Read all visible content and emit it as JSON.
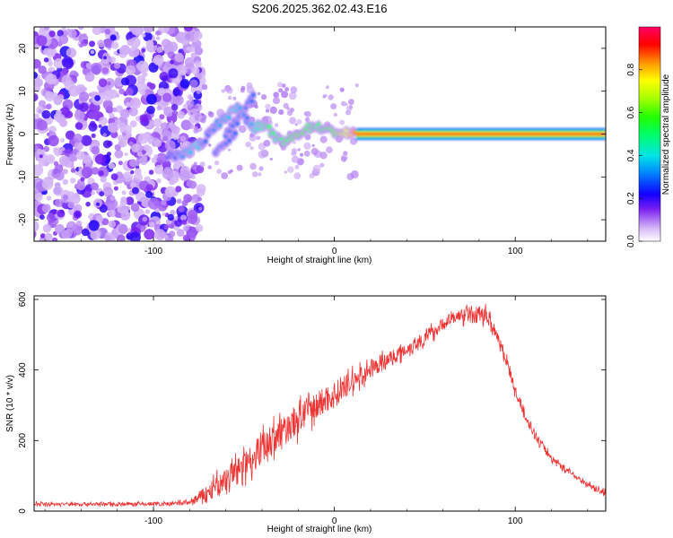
{
  "title": "S206.2025.362.02.43.E16",
  "chart_data": [
    {
      "type": "heatmap",
      "xlabel": "Height of straight line (km)",
      "ylabel": "Frequency (Hz)",
      "xlim": [
        -166,
        150
      ],
      "ylim": [
        -25,
        25
      ],
      "xticks": [
        -100,
        0,
        100
      ],
      "yticks": [
        -20,
        -10,
        0,
        10,
        20
      ],
      "colorbar": {
        "label": "Normalized spectral amplitude",
        "range": [
          0,
          1
        ],
        "ticks": [
          0.0,
          0.2,
          0.4,
          0.6,
          0.8
        ],
        "tick_labels": [
          "0.0",
          "0.2",
          "0.4",
          "0.6",
          "0.8"
        ]
      },
      "noise_region_x": [
        -166,
        -80
      ],
      "signal_track": {
        "x": [
          -92,
          -82,
          -76,
          -72,
          -68,
          -64,
          -60,
          -56,
          -52,
          -48,
          -44,
          -40,
          -36,
          -32,
          -28,
          -24,
          -20,
          -16,
          -12,
          -8,
          -4,
          0,
          4,
          8,
          12,
          150
        ],
        "y": [
          -5,
          -4.5,
          -3,
          -1.5,
          1,
          2.5,
          4,
          5.5,
          6,
          3,
          1.5,
          2,
          1,
          -1,
          -2,
          -1,
          0,
          1,
          2,
          1.5,
          1,
          0.5,
          0.2,
          0.1,
          0,
          0
        ],
        "amplitude": [
          0.25,
          0.35,
          0.4,
          0.3,
          0.3,
          0.35,
          0.35,
          0.4,
          0.35,
          0.3,
          0.4,
          0.45,
          0.5,
          0.45,
          0.5,
          0.55,
          0.6,
          0.55,
          0.5,
          0.5,
          0.55,
          0.6,
          0.7,
          0.75,
          0.85,
          0.95
        ]
      },
      "branches": [
        {
          "x": [
            -66,
            -62,
            -58,
            -54
          ],
          "y": [
            -5,
            -3,
            -1,
            1
          ]
        },
        {
          "x": [
            -60,
            -56,
            -52,
            -48,
            -44
          ],
          "y": [
            0,
            2,
            4,
            7,
            9
          ]
        }
      ]
    },
    {
      "type": "line",
      "xlabel": "Height of straight line (km)",
      "ylabel": "SNR (10 * v/v)",
      "xlim": [
        -166,
        150
      ],
      "ylim": [
        0,
        610
      ],
      "xticks": [
        -100,
        0,
        100
      ],
      "yticks": [
        0,
        200,
        400,
        600
      ],
      "series": [
        {
          "name": "SNR",
          "color": "#ee3333",
          "x": [
            -166,
            -150,
            -130,
            -110,
            -90,
            -80,
            -70,
            -60,
            -50,
            -40,
            -30,
            -20,
            -10,
            0,
            10,
            20,
            30,
            40,
            50,
            60,
            65,
            70,
            75,
            80,
            85,
            90,
            95,
            100,
            110,
            120,
            130,
            140,
            150
          ],
          "y": [
            20,
            20,
            20,
            20,
            20,
            25,
            50,
            90,
            130,
            180,
            220,
            260,
            300,
            330,
            365,
            400,
            430,
            460,
            490,
            530,
            545,
            555,
            560,
            560,
            550,
            500,
            430,
            340,
            220,
            150,
            110,
            75,
            50
          ],
          "jitter": [
            5,
            5,
            5,
            5,
            6,
            8,
            25,
            35,
            40,
            45,
            45,
            45,
            40,
            38,
            30,
            25,
            22,
            20,
            20,
            18,
            18,
            20,
            22,
            22,
            22,
            20,
            18,
            15,
            12,
            10,
            8,
            8,
            8
          ]
        }
      ]
    }
  ]
}
